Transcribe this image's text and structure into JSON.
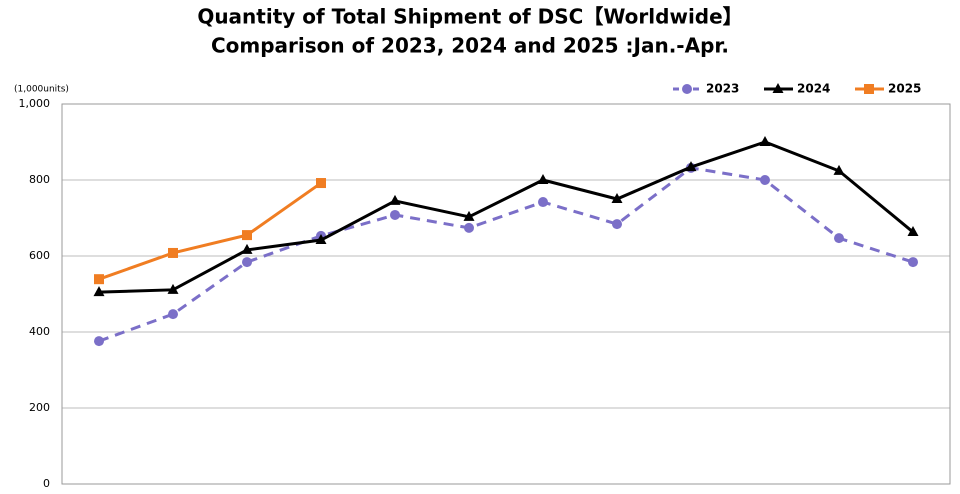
{
  "chart_data": {
    "type": "line",
    "title": "Quantity of Total Shipment of DSC【Worldwide】",
    "subtitle": "Comparison of 2023, 2024 and 2025 :Jan.-Apr.",
    "y_label": "(1,000units)",
    "categories": [
      null,
      null,
      null,
      null,
      null,
      null,
      null,
      null,
      null,
      null,
      null,
      null
    ],
    "series": [
      {
        "name": "2023",
        "color": "#7b6fc8",
        "dash": true,
        "marker": "circle",
        "values": [
          376,
          447,
          584,
          653,
          708,
          674,
          742,
          684,
          832,
          800,
          647,
          584
        ]
      },
      {
        "name": "2024",
        "color": "#000000",
        "dash": false,
        "marker": "triangle",
        "values": [
          505,
          511,
          616,
          642,
          745,
          703,
          800,
          750,
          834,
          900,
          824,
          663
        ]
      },
      {
        "name": "2025",
        "color": "#f07d22",
        "dash": false,
        "marker": "square",
        "values": [
          539,
          608,
          655,
          792,
          null,
          null,
          null,
          null,
          null,
          null,
          null,
          null
        ]
      }
    ],
    "ylim": [
      0,
      1000
    ],
    "yticks": [
      0,
      200,
      400,
      600,
      800,
      {
        "value": 1000,
        "label": "1,000"
      }
    ],
    "grid": true,
    "legend": "top-right"
  }
}
